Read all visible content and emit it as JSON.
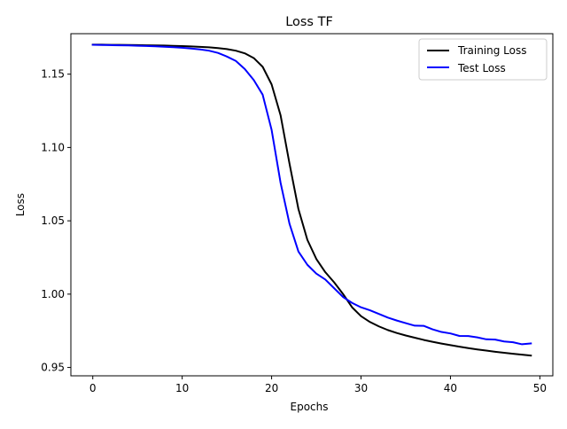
{
  "chart_data": {
    "type": "line",
    "title": "Loss TF",
    "xlabel": "Epochs",
    "ylabel": "Loss",
    "xlim": [
      -2.45,
      51.45
    ],
    "ylim": [
      0.9443,
      1.1776
    ],
    "xticks": [
      0,
      10,
      20,
      30,
      40,
      50
    ],
    "yticks": [
      0.95,
      1.0,
      1.05,
      1.1,
      1.15
    ],
    "xtick_labels": [
      "0",
      "10",
      "20",
      "30",
      "40",
      "50"
    ],
    "ytick_labels": [
      "0.95",
      "1.00",
      "1.05",
      "1.10",
      "1.15"
    ],
    "grid": false,
    "legend_position": "top-right",
    "series": [
      {
        "name": "Training Loss",
        "color": "#000000",
        "x": [
          0,
          1,
          2,
          3,
          4,
          5,
          6,
          7,
          8,
          9,
          10,
          11,
          12,
          13,
          14,
          15,
          16,
          17,
          18,
          19,
          20,
          21,
          22,
          23,
          24,
          25,
          26,
          27,
          28,
          29,
          30,
          31,
          32,
          33,
          34,
          35,
          36,
          37,
          38,
          39,
          40,
          41,
          42,
          43,
          44,
          45,
          46,
          47,
          48,
          49
        ],
        "values": [
          1.1701,
          1.1701,
          1.17,
          1.17,
          1.1699,
          1.1698,
          1.1697,
          1.1696,
          1.1695,
          1.1693,
          1.1691,
          1.1689,
          1.1686,
          1.1683,
          1.1678,
          1.1671,
          1.166,
          1.1642,
          1.161,
          1.155,
          1.143,
          1.122,
          1.089,
          1.058,
          1.037,
          1.024,
          1.015,
          1.008,
          1.0,
          0.991,
          0.985,
          0.981,
          0.978,
          0.9755,
          0.9735,
          0.9718,
          0.9703,
          0.9688,
          0.9675,
          0.9663,
          0.9652,
          0.9642,
          0.9632,
          0.9623,
          0.9615,
          0.9607,
          0.96,
          0.9593,
          0.9587,
          0.9581
        ]
      },
      {
        "name": "Test Loss",
        "color": "#0000ff",
        "x": [
          0,
          1,
          2,
          3,
          4,
          5,
          6,
          7,
          8,
          9,
          10,
          11,
          12,
          13,
          14,
          15,
          16,
          17,
          18,
          19,
          20,
          21,
          22,
          23,
          24,
          25,
          26,
          27,
          28,
          29,
          30,
          31,
          32,
          33,
          34,
          35,
          36,
          37,
          38,
          39,
          40,
          41,
          42,
          43,
          44,
          45,
          46,
          47,
          48,
          49
        ],
        "values": [
          1.17,
          1.1699,
          1.1698,
          1.1697,
          1.1696,
          1.1694,
          1.1692,
          1.169,
          1.1687,
          1.1684,
          1.168,
          1.1675,
          1.1669,
          1.166,
          1.1645,
          1.162,
          1.159,
          1.1535,
          1.146,
          1.136,
          1.112,
          1.076,
          1.048,
          1.029,
          1.02,
          1.014,
          1.01,
          1.004,
          0.998,
          0.994,
          0.991,
          0.989,
          0.9865,
          0.984,
          0.982,
          0.9802,
          0.9785,
          0.9784,
          0.976,
          0.9742,
          0.9732,
          0.9715,
          0.9714,
          0.9705,
          0.9692,
          0.969,
          0.9677,
          0.9672,
          0.9658,
          0.9664
        ]
      }
    ]
  }
}
